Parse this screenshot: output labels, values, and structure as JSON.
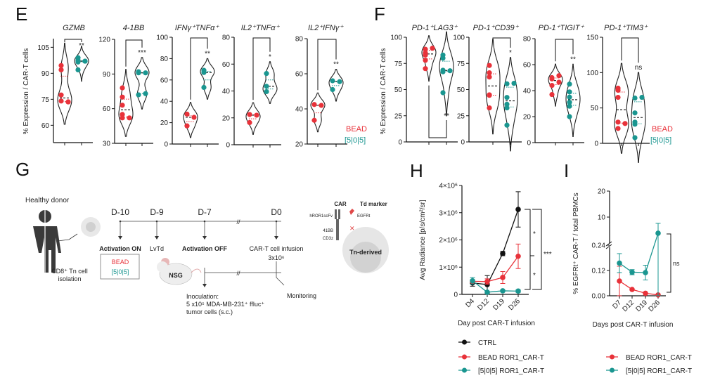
{
  "colors": {
    "bead": "#e8323a",
    "t505": "#1a9690",
    "ctrl": "#111111"
  },
  "panel_labels": {
    "e": "E",
    "f": "F",
    "g": "G",
    "h": "H",
    "i": "I"
  },
  "legend_ef": {
    "bead": "BEAD",
    "t505": "[5|0|5]"
  },
  "chart_data": [
    {
      "id": "E",
      "type": "violin",
      "ylabel": "% Expression / CAR-T cells",
      "panels": [
        {
          "title": "GZMB",
          "ylim": [
            50,
            110
          ],
          "ticks": [
            60,
            75,
            90,
            105
          ],
          "sig": "**",
          "groups": [
            {
              "name": "BEAD",
              "points": [
                94.5,
                92,
                77.5,
                74,
                73.5,
                73.5
              ]
            },
            {
              "name": "[5|0|5]",
              "points": [
                99,
                97.5,
                96.5,
                97,
                92,
                97
              ]
            }
          ]
        },
        {
          "title": "4-1BB",
          "ylim": [
            30,
            120
          ],
          "ticks": [
            30,
            60,
            90,
            120
          ],
          "sig": "***",
          "groups": [
            {
              "name": "BEAD",
              "points": [
                78,
                70,
                63,
                55,
                52,
                52
              ]
            },
            {
              "name": "[5|0|5]",
              "points": [
                92,
                91,
                91,
                72,
                73
              ]
            }
          ]
        },
        {
          "title": "IFNγ⁺TNFα⁺",
          "ylim": [
            0,
            100
          ],
          "ticks": [
            0,
            20,
            40,
            60,
            80,
            100
          ],
          "sig": "**",
          "groups": [
            {
              "name": "BEAD",
              "points": [
                28,
                25,
                17
              ]
            },
            {
              "name": "[5|0|5]",
              "points": [
                69,
                67,
                53
              ]
            }
          ]
        },
        {
          "title": "IL2⁺TNFα⁺",
          "ylim": [
            0,
            80
          ],
          "ticks": [
            0,
            20,
            40,
            60,
            80
          ],
          "sig": "*",
          "groups": [
            {
              "name": "BEAD",
              "points": [
                22.5,
                22,
                16.5
              ]
            },
            {
              "name": "[5|0|5]",
              "points": [
                53,
                43.5,
                39.5
              ]
            }
          ]
        },
        {
          "title": "IL2⁺IFNγ⁺",
          "ylim": [
            20,
            80
          ],
          "ticks": [
            20,
            40,
            60,
            80
          ],
          "sig": "**",
          "groups": [
            {
              "name": "BEAD",
              "points": [
                42.5,
                42,
                33.5
              ]
            },
            {
              "name": "[5|0|5]",
              "points": [
                56,
                55.5,
                51
              ]
            }
          ]
        }
      ]
    },
    {
      "id": "F",
      "type": "violin",
      "ylabel": "% Expression / CAR-T cells",
      "panels": [
        {
          "title": "PD-1⁺LAG3⁺",
          "ylim": [
            0,
            100
          ],
          "ticks": [
            0,
            25,
            50,
            75,
            100
          ],
          "sig": "**",
          "bracket": "below",
          "groups": [
            {
              "name": "BEAD",
              "points": [
                88.5,
                89.5,
                83,
                85,
                78,
                70
              ]
            },
            {
              "name": "[5|0|5]",
              "points": [
                83,
                80,
                68.5,
                67,
                68,
                47
              ]
            }
          ]
        },
        {
          "title": "PD-1⁺CD39⁺",
          "ylim": [
            0,
            100
          ],
          "ticks": [
            0,
            25,
            50,
            75,
            100
          ],
          "sig": "*",
          "groups": [
            {
              "name": "BEAD",
              "points": [
                73,
                66,
                62,
                45,
                44.5,
                32.5
              ]
            },
            {
              "name": "[5|0|5]",
              "points": [
                55.5,
                56,
                42.5,
                36,
                32.5,
                16
              ]
            }
          ]
        },
        {
          "title": "PD-1⁺TIGIT⁺",
          "ylim": [
            0,
            80
          ],
          "ticks": [
            0,
            20,
            40,
            60,
            80
          ],
          "sig": "**",
          "groups": [
            {
              "name": "BEAD",
              "points": [
                49,
                50,
                51.5,
                44,
                46.5,
                37
              ]
            },
            {
              "name": "[5|0|5]",
              "points": [
                45,
                39,
                35,
                31,
                28,
                20
              ]
            }
          ]
        },
        {
          "title": "PD-1⁺TIM3⁺",
          "ylim": [
            0,
            150
          ],
          "ticks": [
            0,
            50,
            100,
            150
          ],
          "sig": "ns",
          "groups": [
            {
              "name": "BEAD",
              "points": [
                75,
                78,
                65,
                30,
                28,
                21
              ]
            },
            {
              "name": "[5|0|5]",
              "points": [
                64,
                65,
                43,
                30,
                27,
                8
              ]
            }
          ]
        }
      ]
    },
    {
      "id": "H",
      "type": "line",
      "ylabel": "Avg Radiance [p/s/cm²/sr]",
      "xlabel": "Day post CAR-T infusion",
      "categories": [
        "D4",
        "D12",
        "D19",
        "D26"
      ],
      "ylim": [
        0,
        4000000
      ],
      "yticks": [
        {
          "v": 0,
          "label": "0"
        },
        {
          "v": 1000000,
          "label": "1×10⁶"
        },
        {
          "v": 2000000,
          "label": "2×10⁶"
        },
        {
          "v": 3000000,
          "label": "3×10⁶"
        },
        {
          "v": 4000000,
          "label": "4×10⁶"
        }
      ],
      "series": [
        {
          "name": "CTRL",
          "key": "ctrl",
          "values": [
            420000,
            360000,
            1500000,
            3120000
          ],
          "errors": [
            120000,
            330000,
            80000,
            650000
          ]
        },
        {
          "name": "BEAD ROR1_CAR-T",
          "key": "bead",
          "values": [
            480000,
            470000,
            620000,
            1400000
          ],
          "errors": [
            50000,
            100000,
            220000,
            450000
          ]
        },
        {
          "name": "[5|0|5] ROR1_CAR-T",
          "key": "t505",
          "values": [
            500000,
            80000,
            130000,
            120000
          ],
          "errors": [
            120000,
            30000,
            30000,
            50000
          ]
        }
      ],
      "comparisons": [
        {
          "a": "CTRL",
          "b": "BEAD ROR1_CAR-T",
          "sig": "*"
        },
        {
          "a": "BEAD ROR1_CAR-T",
          "b": "[5|0|5] ROR1_CAR-T",
          "sig": "*"
        },
        {
          "a": "CTRL",
          "b": "[5|0|5] ROR1_CAR-T",
          "sig": "***"
        }
      ]
    },
    {
      "id": "I",
      "type": "line",
      "axis_break": true,
      "ylabel": "% EGFRt⁺ CAR-T / total PBMCs",
      "xlabel": "Days post CAR-T infusion",
      "categories": [
        "D7",
        "D12",
        "D19",
        "D26"
      ],
      "yticks": [
        {
          "v": 0,
          "label": "0.00"
        },
        {
          "v": 0.12,
          "label": "0.12"
        },
        {
          "v": 0.24,
          "label": "0.24"
        },
        {
          "v": 10,
          "label": "10"
        },
        {
          "v": 20,
          "label": "20"
        }
      ],
      "series": [
        {
          "name": "BEAD ROR1_CAR-T",
          "key": "bead",
          "values": [
            0.07,
            0.03,
            0.012,
            0.004
          ],
          "errors": [
            0.07,
            0.002,
            0.002,
            0.001
          ]
        },
        {
          "name": "[5|0|5] ROR1_CAR-T",
          "key": "t505",
          "values": [
            0.155,
            0.112,
            0.11,
            3.8
          ],
          "errors": [
            0.045,
            0.012,
            0.035,
            3.8
          ]
        }
      ],
      "comparisons": [
        {
          "a": "BEAD ROR1_CAR-T",
          "b": "[5|0|5] ROR1_CAR-T",
          "sig": "ns"
        }
      ]
    }
  ],
  "diagram_g": {
    "healthy_donor": "Healthy donor",
    "isolation_line1": "CD8⁺ Tn cell",
    "isolation_line2": "isolation",
    "timeline": [
      {
        "day": "D-10",
        "label": "Activation ON",
        "bold": true
      },
      {
        "day": "D-9",
        "label": "LvTd",
        "bold": false
      },
      {
        "day": "D-7",
        "label": "Activation OFF",
        "bold": true
      },
      {
        "day": "D0",
        "label": "CAR-T cell infusion",
        "bold": false
      }
    ],
    "infusion_dose": "3x10⁶",
    "box_bead": "BEAD",
    "box_505": "[5|0|5]",
    "mouse": "NSG",
    "inoculation": [
      "Inoculation:",
      "5 x10⁵ MDA-MB-231⁺ ffluc⁺",
      "tumor cells (s.c.)"
    ],
    "monitoring": "Monitoring",
    "cell": {
      "car": "CAR",
      "td_marker": "Td marker",
      "scfv": "hROR1scFv",
      "egfrt": "EGFRt",
      "costim": "41BB",
      "cd3z": "CD3z",
      "name": "Tn-derived"
    }
  }
}
